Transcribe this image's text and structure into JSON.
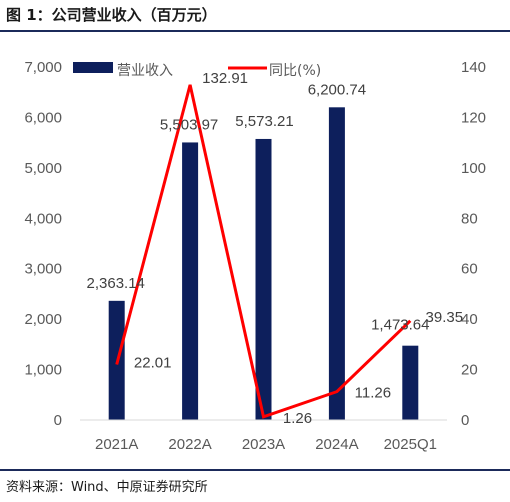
{
  "header": {
    "title": "图 1：公司营业收入（百万元）"
  },
  "footer": {
    "source": "资料来源：Wind、中原证券研究所"
  },
  "chart_data": {
    "type": "bar+line",
    "categories": [
      "2021A",
      "2022A",
      "2023A",
      "2024A",
      "2025Q1"
    ],
    "series": [
      {
        "name": "营业收入",
        "kind": "bar",
        "axis": "left",
        "values": [
          2363.14,
          5503.97,
          5573.21,
          6200.74,
          1473.64
        ],
        "labels": [
          "2,363.14",
          "5,503.97",
          "5,573.21",
          "6,200.74",
          "1,473.64"
        ]
      },
      {
        "name": "同比(%)",
        "kind": "line",
        "axis": "right",
        "values": [
          22.01,
          132.91,
          1.26,
          11.26,
          39.35
        ],
        "labels": [
          "22.01",
          "132.91",
          "1.26",
          "11.26",
          "39.35"
        ]
      }
    ],
    "y_left": {
      "ylim": [
        0,
        7000
      ],
      "ticks": [
        "0",
        "1,000",
        "2,000",
        "3,000",
        "4,000",
        "5,000",
        "6,000",
        "7,000"
      ]
    },
    "y_right": {
      "ylim": [
        0,
        140
      ],
      "ticks": [
        "0",
        "20",
        "40",
        "60",
        "80",
        "100",
        "120",
        "140"
      ]
    },
    "legend_position": "top",
    "grid": false,
    "colors": {
      "bar": "#0d1f5c",
      "line": "#ff0000"
    }
  }
}
